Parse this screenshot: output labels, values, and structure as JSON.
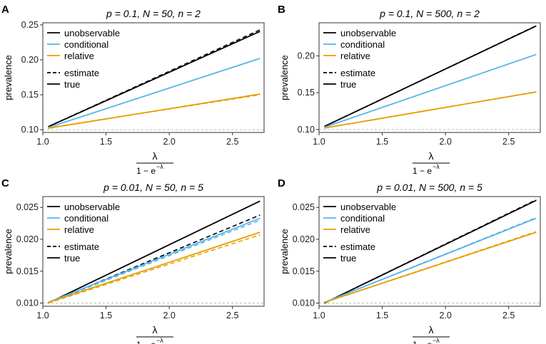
{
  "colors": {
    "unobservable": "#000000",
    "conditional": "#56B4E9",
    "relative": "#E69F00",
    "baseline": "#BBBBBB",
    "frame": "#333333"
  },
  "legend": {
    "series_labels": [
      "unobservable",
      "conditional",
      "relative"
    ],
    "line_types": [
      "estimate",
      "true"
    ]
  },
  "xaxis": {
    "label_numerator": "λ",
    "label_denominator": "1 − e",
    "label_exponent": "−λ",
    "ticks": [
      "1.0",
      "1.5",
      "2.0",
      "2.5"
    ]
  },
  "yaxis_label": "prevalence",
  "chart_data": [
    {
      "panel": "A",
      "type": "line",
      "title": "p = 0.1, N = 50, n = 2",
      "xlim": [
        1.0,
        2.75
      ],
      "ylim": [
        0.096,
        0.253
      ],
      "yticks": [
        "0.10",
        "0.15",
        "0.20",
        "0.25"
      ],
      "baseline": 0.1,
      "x": [
        1.042,
        2.718
      ],
      "series": [
        {
          "name": "unobservable",
          "kind": "true",
          "values": [
            0.1042,
            0.2407
          ]
        },
        {
          "name": "unobservable",
          "kind": "estimate",
          "values": [
            0.1042,
            0.243
          ]
        },
        {
          "name": "conditional",
          "kind": "true",
          "values": [
            0.103,
            0.202
          ]
        },
        {
          "name": "relative",
          "kind": "true",
          "values": [
            0.102,
            0.151
          ]
        },
        {
          "name": "relative",
          "kind": "estimate",
          "values": [
            0.1025,
            0.15
          ]
        }
      ]
    },
    {
      "panel": "B",
      "type": "line",
      "title": "p = 0.1, N = 500, n = 2",
      "xlim": [
        1.0,
        2.75
      ],
      "ylim": [
        0.096,
        0.245
      ],
      "yticks": [
        "0.10",
        "0.15",
        "0.20"
      ],
      "baseline": 0.1,
      "x": [
        1.042,
        2.718
      ],
      "series": [
        {
          "name": "unobservable",
          "kind": "true",
          "values": [
            0.1042,
            0.2407
          ]
        },
        {
          "name": "unobservable",
          "kind": "estimate",
          "values": [
            0.1042,
            0.241
          ]
        },
        {
          "name": "conditional",
          "kind": "true",
          "values": [
            0.103,
            0.202
          ]
        },
        {
          "name": "relative",
          "kind": "true",
          "values": [
            0.102,
            0.151
          ]
        },
        {
          "name": "relative",
          "kind": "estimate",
          "values": [
            0.102,
            0.1512
          ]
        }
      ]
    },
    {
      "panel": "C",
      "type": "line",
      "title": "p = 0.01, N = 50, n = 5",
      "xlim": [
        1.0,
        2.75
      ],
      "ylim": [
        0.0095,
        0.0267
      ],
      "yticks": [
        "0.010",
        "0.015",
        "0.020",
        "0.025"
      ],
      "baseline": 0.01,
      "x": [
        1.042,
        2.718
      ],
      "series": [
        {
          "name": "unobservable",
          "kind": "true",
          "values": [
            0.01,
            0.026
          ]
        },
        {
          "name": "unobservable",
          "kind": "estimate",
          "values": [
            0.01,
            0.0238
          ]
        },
        {
          "name": "conditional",
          "kind": "true",
          "values": [
            0.0101,
            0.0233
          ]
        },
        {
          "name": "conditional",
          "kind": "estimate",
          "values": [
            0.01,
            0.023
          ]
        },
        {
          "name": "relative",
          "kind": "true",
          "values": [
            0.0101,
            0.0211
          ]
        },
        {
          "name": "relative",
          "kind": "estimate",
          "values": [
            0.01,
            0.0207
          ]
        }
      ]
    },
    {
      "panel": "D",
      "type": "line",
      "title": "p = 0.01, N = 500, n = 5",
      "xlim": [
        1.0,
        2.75
      ],
      "ylim": [
        0.0095,
        0.0267
      ],
      "yticks": [
        "0.010",
        "0.015",
        "0.020",
        "0.025"
      ],
      "baseline": 0.01,
      "x": [
        1.042,
        2.718
      ],
      "series": [
        {
          "name": "unobservable",
          "kind": "true",
          "values": [
            0.01,
            0.0261
          ]
        },
        {
          "name": "unobservable",
          "kind": "estimate",
          "values": [
            0.01,
            0.0262
          ]
        },
        {
          "name": "conditional",
          "kind": "true",
          "values": [
            0.0101,
            0.0233
          ]
        },
        {
          "name": "conditional",
          "kind": "estimate",
          "values": [
            0.0101,
            0.0234
          ]
        },
        {
          "name": "relative",
          "kind": "true",
          "values": [
            0.0101,
            0.0211
          ]
        },
        {
          "name": "relative",
          "kind": "estimate",
          "values": [
            0.0101,
            0.0212
          ]
        }
      ]
    }
  ]
}
